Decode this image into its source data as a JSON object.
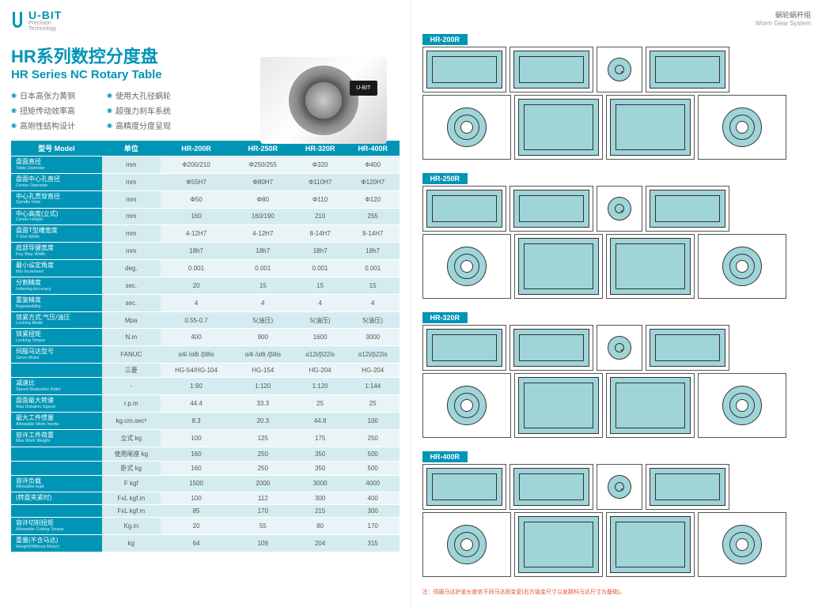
{
  "brand": "U-BIT",
  "brand_sub1": "Precision",
  "brand_sub2": "Technology",
  "title_cn": "HR系列数控分度盘",
  "title_en": "HR Series NC Rotary Table",
  "features_left": [
    "日本高张力黄铜",
    "扭矩传动效率高",
    "高刚性结构设计"
  ],
  "features_right": [
    "使用大孔径蜗轮",
    "超强力刹车系统",
    "高精度分度呈现"
  ],
  "header_unit": "单位",
  "header_model": "型号 Model",
  "models": [
    "HR-200R",
    "HR-250R",
    "HR-320R",
    "HR-400R"
  ],
  "rows": [
    {
      "cn": "盘面直径",
      "en": "Table Diameter",
      "unit": "mm",
      "v": [
        "Φ200/210",
        "Φ250/255",
        "Φ320",
        "Φ400"
      ]
    },
    {
      "cn": "盘面中心孔直径",
      "en": "Center Diameter",
      "unit": "mm",
      "v": [
        "Φ55H7",
        "Φ80H7",
        "Φ110H7",
        "Φ120H7"
      ]
    },
    {
      "cn": "中心孔贯穿直径",
      "en": "Spindle Hole",
      "unit": "mm",
      "v": [
        "Φ50",
        "Φ80",
        "Φ110",
        "Φ120"
      ]
    },
    {
      "cn": "中心高度(立式)",
      "en": "Center Height",
      "unit": "mm",
      "v": [
        "160",
        "160/190",
        "210",
        "255"
      ]
    },
    {
      "cn": "盘面T型槽宽度",
      "en": "T-Slot Width",
      "unit": "mm",
      "v": [
        "4-12H7",
        "4-12H7",
        "8-14H7",
        "8-14H7"
      ]
    },
    {
      "cn": "底部导键宽度",
      "en": "Key Way Width",
      "unit": "mm",
      "v": [
        "18h7",
        "18h7",
        "18h7",
        "18h7"
      ]
    },
    {
      "cn": "最小设定角度",
      "en": "Min Increment",
      "unit": "deg.",
      "v": [
        "0.001",
        "0.001",
        "0.001",
        "0.001"
      ]
    },
    {
      "cn": "分割精度",
      "en": "Indexing Accuracy",
      "unit": "sec.",
      "v": [
        "20",
        "15",
        "15",
        "15"
      ]
    },
    {
      "cn": "重复精度",
      "en": "Repeatability",
      "unit": "sec.",
      "v": [
        "4",
        "4",
        "4",
        "4"
      ]
    },
    {
      "cn": "锁紧方式:气压/油压",
      "en": "Locking Mode",
      "unit": "Mpa",
      "v": [
        "0.55-0.7",
        "5(油压)",
        "5(油压)",
        "5(油压)"
      ]
    },
    {
      "cn": "锁紧扭矩",
      "en": "Locking Torque",
      "unit": "N.m",
      "v": [
        "400",
        "900",
        "1600",
        "3000"
      ]
    },
    {
      "cn": "伺服马达型号",
      "en": "Servo Motor",
      "unit": "FANUC",
      "v": [
        "α4i /α8i /β8is",
        "α4i /α8i /β8is",
        "α12i/β22is",
        "α12i/β22is"
      ]
    },
    {
      "cn": "",
      "en": "",
      "unit": "三菱",
      "v": [
        "HG-54/HG-104",
        "HG-154",
        "HG-204",
        "HG-204"
      ]
    },
    {
      "cn": "减速比",
      "en": "Speed Reduction Ratio",
      "unit": "-",
      "v": [
        "1:90",
        "1:120",
        "1:120",
        "1:144"
      ]
    },
    {
      "cn": "盘面最大转速",
      "en": "Max Rotation Speed",
      "unit": "r.p.m",
      "v": [
        "44.4",
        "33.3",
        "25",
        "25"
      ]
    },
    {
      "cn": "最大工件惯量",
      "en": "Allowable Work Inertia",
      "unit": "kg.cm.sec²",
      "v": [
        "8.3",
        "20.3",
        "44.8",
        "100"
      ]
    },
    {
      "cn": "容许工件荷重",
      "en": "Max Work Weight",
      "unit": "立式 kg",
      "v": [
        "100",
        "125",
        "175",
        "250"
      ]
    },
    {
      "cn": "",
      "en": "",
      "unit": "使用尾座 kg",
      "v": [
        "160",
        "250",
        "350",
        "500"
      ]
    },
    {
      "cn": "",
      "en": "",
      "unit": "卧式 kg",
      "v": [
        "160",
        "250",
        "350",
        "500"
      ]
    },
    {
      "cn": "容许负载",
      "en": "Allowable load",
      "unit": "F kgf",
      "v": [
        "1500",
        "2000",
        "3000",
        "4000"
      ]
    },
    {
      "cn": "(转盘夹紧时)",
      "en": "",
      "unit": "FxL kgf.m",
      "v": [
        "100",
        "112",
        "300",
        "400"
      ]
    },
    {
      "cn": "",
      "en": "",
      "unit": "FxL kgf.m",
      "v": [
        "85",
        "170",
        "215",
        "300"
      ]
    },
    {
      "cn": "容许切削扭矩",
      "en": "Allowable Cutting Torque",
      "unit": "Kg.m",
      "v": [
        "20",
        "55",
        "80",
        "170"
      ]
    },
    {
      "cn": "重量(不含马达)",
      "en": "Weight(Without Motor)",
      "unit": "kg",
      "v": [
        "64",
        "109",
        "204",
        "315"
      ]
    }
  ],
  "right_header_cn": "蜗轮蜗杆组",
  "right_header_en": "Worm Gear System",
  "variants": [
    "HR-200R",
    "HR-250R",
    "HR-320R",
    "HR-400R"
  ],
  "note": "注：伺服马达护盖长度依不同马达而变更(右方钣金尺寸以发那科马达尺寸为基础)。",
  "colors": {
    "brand": "#0095b6",
    "cell": "#e8f4f6",
    "cell_alt": "#d4ecf0",
    "mech": "#9fd4d9"
  }
}
